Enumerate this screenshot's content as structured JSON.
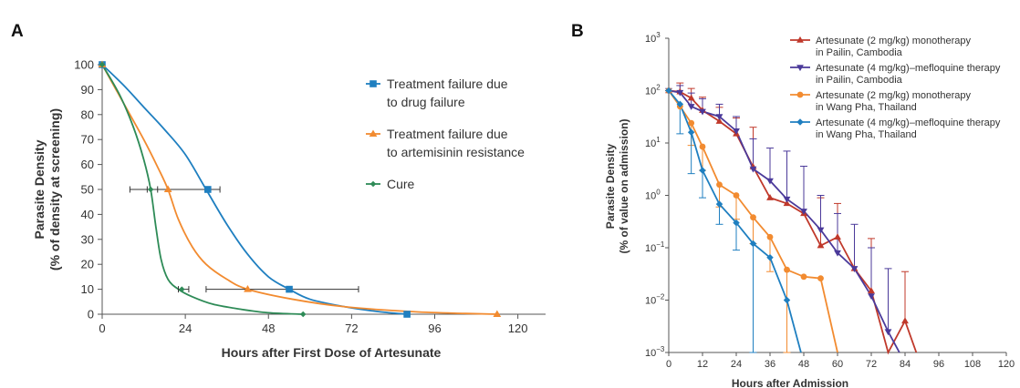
{
  "colors": {
    "drug_failure": "#1f7fc0",
    "artemisinin": "#f28b30",
    "cure": "#2e8b57",
    "pailin_mono": "#c0392b",
    "pailin_combo": "#4b3a9a",
    "wangpha_mono": "#f28b30",
    "wangpha_combo": "#1f7fc0",
    "axis": "#555555",
    "errorbar": "#333333"
  },
  "chart_data": [
    {
      "type": "line",
      "panel": "A",
      "xlabel": "Hours after First Dose of Artesunate",
      "ylabel": [
        "Parasite Density",
        "(% of density at screening)"
      ],
      "xlim": [
        0,
        128
      ],
      "ylim": [
        0,
        100
      ],
      "x_ticks": [
        0,
        24,
        48,
        72,
        96,
        120
      ],
      "y_ticks": [
        0,
        10,
        20,
        30,
        40,
        50,
        60,
        70,
        80,
        90,
        100
      ],
      "legend_position": "top-right",
      "series": [
        {
          "key": "drug_failure",
          "name": [
            "Treatment failure due",
            "to drug failure"
          ],
          "marker": "square",
          "curve": [
            [
              0,
              100
            ],
            [
              6,
              92
            ],
            [
              12,
              83
            ],
            [
              18,
              74
            ],
            [
              24,
              64
            ],
            [
              30,
              50
            ],
            [
              36,
              36
            ],
            [
              42,
              24
            ],
            [
              48,
              15
            ],
            [
              54,
              10
            ],
            [
              60,
              6
            ],
            [
              70,
              3
            ],
            [
              80,
              1
            ],
            [
              88,
              0
            ]
          ],
          "points": [
            {
              "x": 0,
              "y": 100
            },
            {
              "x": 30.5,
              "y": 50,
              "xerr": [
                8,
                34
              ]
            },
            {
              "x": 54,
              "y": 10,
              "xerr": [
                30,
                74
              ]
            },
            {
              "x": 88,
              "y": 0
            }
          ]
        },
        {
          "key": "artemisinin",
          "name": [
            "Treatment failure due",
            "to artemisinin resistance"
          ],
          "marker": "triangle",
          "curve": [
            [
              0,
              100
            ],
            [
              6,
              85
            ],
            [
              12,
              70
            ],
            [
              16,
              59
            ],
            [
              19,
              50
            ],
            [
              22,
              38
            ],
            [
              26,
              27
            ],
            [
              30,
              20
            ],
            [
              36,
              14
            ],
            [
              42,
              10
            ],
            [
              55,
              6
            ],
            [
              70,
              3
            ],
            [
              90,
              1
            ],
            [
              105,
              0.3
            ],
            [
              114,
              0
            ]
          ],
          "points": [
            {
              "x": 0,
              "y": 100
            },
            {
              "x": 19,
              "y": 50
            },
            {
              "x": 42,
              "y": 10
            },
            {
              "x": 114,
              "y": 0
            }
          ]
        },
        {
          "key": "cure",
          "name": [
            "Cure"
          ],
          "marker": "diamond",
          "curve": [
            [
              0,
              100
            ],
            [
              5,
              88
            ],
            [
              9,
              75
            ],
            [
              12,
              62
            ],
            [
              14,
              50
            ],
            [
              15.5,
              35
            ],
            [
              17,
              22
            ],
            [
              19,
              14
            ],
            [
              22,
              10
            ],
            [
              26,
              7
            ],
            [
              32,
              4
            ],
            [
              40,
              2
            ],
            [
              48,
              0.6
            ],
            [
              58,
              0
            ]
          ],
          "points": [
            {
              "x": 0,
              "y": 100
            },
            {
              "x": 14,
              "y": 50,
              "xerr": [
                13,
                16
              ]
            },
            {
              "x": 23,
              "y": 10,
              "xerr": [
                22,
                25
              ]
            },
            {
              "x": 58,
              "y": 0
            }
          ]
        }
      ]
    },
    {
      "type": "line",
      "panel": "B",
      "xlabel": "Hours after Admission",
      "ylabel": [
        "Parasite Density",
        "(% of value on admission)"
      ],
      "y_scale": "log10",
      "xlim": [
        0,
        120
      ],
      "ylim": [
        0.001,
        1000
      ],
      "x_ticks": [
        0,
        12,
        24,
        36,
        48,
        60,
        72,
        84,
        96,
        108,
        120
      ],
      "y_ticks": [
        {
          "value": 1000,
          "base": "10",
          "exp": "3"
        },
        {
          "value": 100,
          "base": "10",
          "exp": "2"
        },
        {
          "value": 10,
          "base": "10",
          "exp": "1"
        },
        {
          "value": 1,
          "base": "10",
          "exp": "0"
        },
        {
          "value": 0.1,
          "base": "10",
          "exp": "−1"
        },
        {
          "value": 0.01,
          "base": "10",
          "exp": "−2"
        },
        {
          "value": 0.001,
          "base": "10",
          "exp": "−3"
        }
      ],
      "legend_position": "top-right",
      "series": [
        {
          "key": "pailin_mono",
          "name": [
            "Artesunate (2 mg/kg) monotherapy",
            "in Pailin, Cambodia"
          ],
          "marker": "triangle",
          "x": [
            0,
            4,
            8,
            12,
            18,
            24,
            30,
            36,
            42,
            48,
            54,
            60,
            66,
            72,
            78,
            84,
            88
          ],
          "y": [
            100,
            95,
            72,
            42,
            26,
            15,
            3.5,
            0.9,
            0.7,
            0.45,
            0.11,
            0.16,
            0.04,
            0.015,
            0.001,
            0.004,
            0.001
          ],
          "upper": [
            null,
            140,
            110,
            75,
            48,
            30,
            20,
            null,
            null,
            null,
            0.9,
            0.7,
            null,
            0.15,
            null,
            0.035,
            null
          ]
        },
        {
          "key": "pailin_combo",
          "name": [
            "Artesunate (4 mg/kg)–mefloquine therapy",
            "in Pailin, Cambodia"
          ],
          "marker": "triangle-down",
          "x": [
            0,
            4,
            8,
            12,
            18,
            24,
            30,
            36,
            42,
            48,
            54,
            60,
            66,
            72,
            78,
            82
          ],
          "y": [
            100,
            92,
            50,
            40,
            32,
            17,
            3.2,
            1.9,
            0.85,
            0.5,
            0.22,
            0.08,
            0.04,
            0.012,
            0.0025,
            0.001
          ],
          "upper": [
            null,
            125,
            90,
            70,
            55,
            32,
            12,
            8,
            7,
            3.6,
            1.0,
            0.45,
            0.28,
            0.1,
            0.04,
            null
          ]
        },
        {
          "key": "wangpha_mono",
          "name": [
            "Artesunate (2 mg/kg) monotherapy",
            "in Wang Pha, Thailand"
          ],
          "marker": "circle",
          "x": [
            0,
            4,
            8,
            12,
            18,
            24,
            30,
            36,
            42,
            48,
            54,
            60
          ],
          "y": [
            100,
            50,
            24,
            8.5,
            1.6,
            1.0,
            0.38,
            0.16,
            0.038,
            0.028,
            0.026,
            0.001
          ],
          "upper": [
            null,
            null,
            null,
            null,
            null,
            null,
            null,
            null,
            null,
            null,
            null,
            null
          ],
          "lower": [
            null,
            null,
            9,
            3,
            0.6,
            0.35,
            0.12,
            0.035,
            0.001,
            null,
            null,
            null
          ]
        },
        {
          "key": "wangpha_combo",
          "name": [
            "Artesunate (4 mg/kg)–mefloquine therapy",
            "in Wang Pha, Thailand"
          ],
          "marker": "diamond",
          "x": [
            0,
            4,
            8,
            12,
            18,
            24,
            30,
            36,
            42,
            47
          ],
          "y": [
            100,
            55,
            16,
            3,
            0.68,
            0.3,
            0.12,
            0.065,
            0.01,
            0.001
          ],
          "lower": [
            null,
            15,
            2.6,
            0.9,
            0.28,
            0.09,
            0.001,
            null,
            null,
            null
          ]
        }
      ]
    }
  ],
  "panelA": {
    "letter": "A"
  },
  "panelB": {
    "letter": "B"
  }
}
